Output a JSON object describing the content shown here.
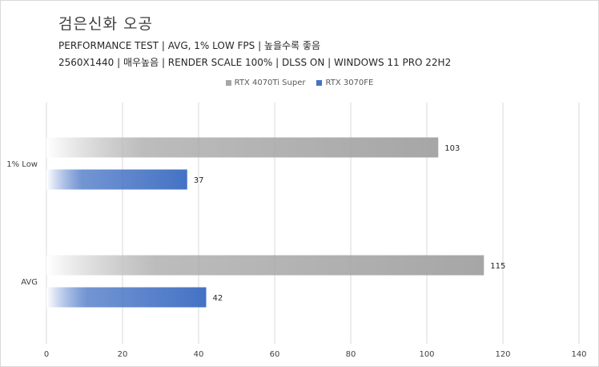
{
  "chart_data": {
    "type": "bar",
    "orientation": "horizontal",
    "title": "검은신화 오공",
    "subtitle_lines": [
      "PERFORMANCE TEST | AVG, 1% LOW FPS | 높을수록 좋음",
      "2560X1440 | 매우높음 | RENDER SCALE 100% | DLSS ON | WINDOWS 11 PRO 22H2"
    ],
    "categories": [
      "1% Low",
      "AVG"
    ],
    "series": [
      {
        "name": "RTX 4070Ti Super",
        "values": [
          103,
          115
        ],
        "color": "#a6a6a6"
      },
      {
        "name": "RTX 3070FE",
        "values": [
          37,
          42
        ],
        "color": "#4472c4"
      }
    ],
    "xlim": [
      0,
      140
    ],
    "xticks": [
      "0",
      "20",
      "40",
      "60",
      "80",
      "100",
      "120",
      "140"
    ],
    "grid": true,
    "legend_position": "top"
  }
}
